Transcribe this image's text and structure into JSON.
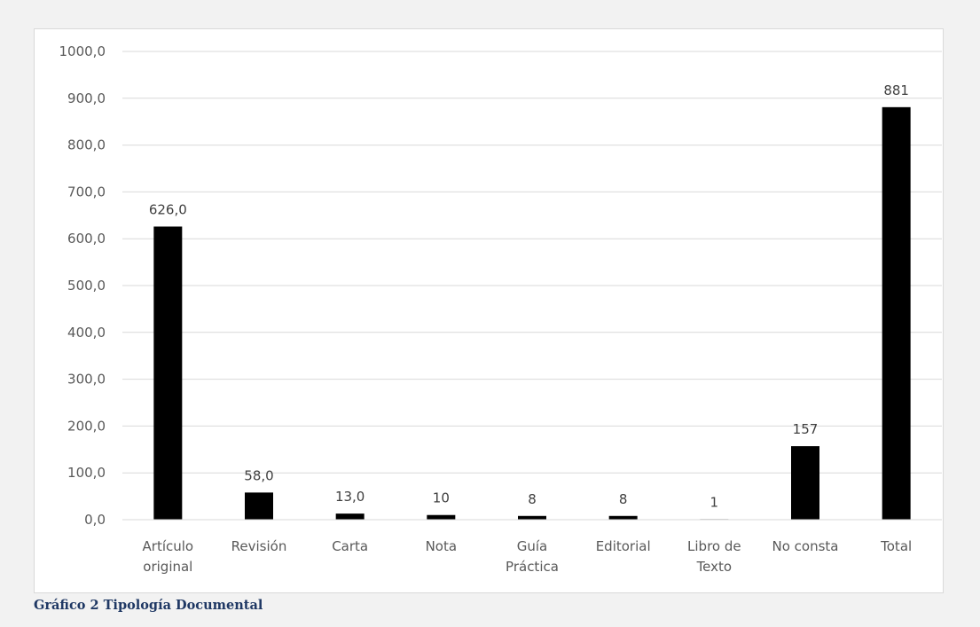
{
  "caption": "Gráfico 2 Tipología Documental",
  "chart_data": {
    "type": "bar",
    "title": "",
    "xlabel": "",
    "ylabel": "",
    "ylim": [
      0,
      1000
    ],
    "yticks": [
      "0,0",
      "100,0",
      "200,0",
      "300,0",
      "400,0",
      "500,0",
      "600,0",
      "700,0",
      "800,0",
      "900,0",
      "1000,0"
    ],
    "grid": true,
    "bar_color": "#000000",
    "categories": [
      [
        "Artículo",
        "original"
      ],
      [
        "Revisión"
      ],
      [
        "Carta"
      ],
      [
        "Nota"
      ],
      [
        "Guía",
        "Práctica"
      ],
      [
        "Editorial"
      ],
      [
        "Libro de",
        "Texto"
      ],
      [
        "No consta"
      ],
      [
        "Total"
      ]
    ],
    "values": [
      626,
      58,
      13,
      10,
      8,
      8,
      1,
      157,
      881
    ],
    "data_labels": [
      "626,0",
      "58,0",
      "13,0",
      "10",
      "8",
      "8",
      "1",
      "157",
      "881"
    ]
  }
}
